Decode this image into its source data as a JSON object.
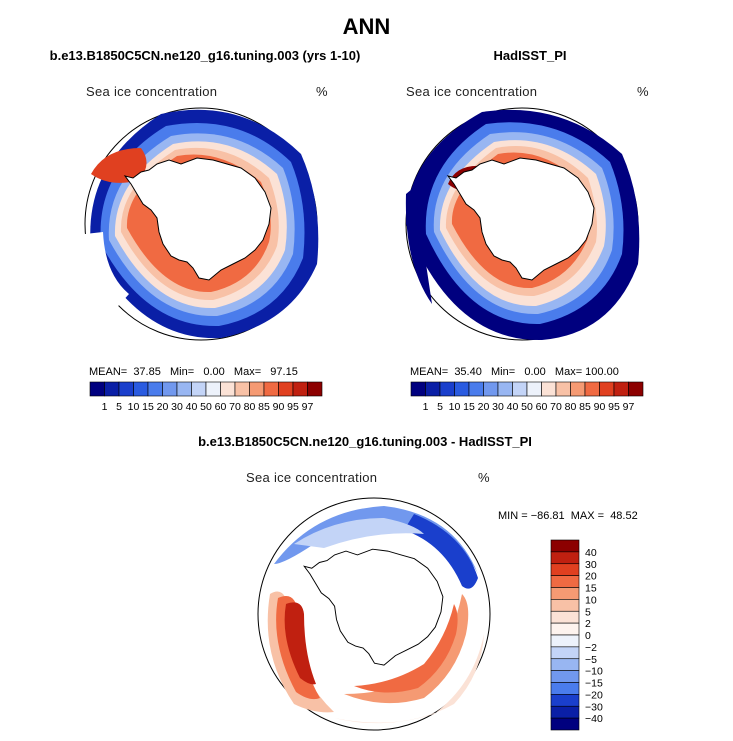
{
  "title": "ANN",
  "panels": [
    {
      "title": "b.e13.B1850C5CN.ne120_g16.tuning.003 (yrs 1-10)",
      "variable": "Sea ice concentration",
      "units": "%",
      "stats_text": "MEAN=  37.85   Min=   0.00   Max=   97.15"
    },
    {
      "title": "HadISST_PI",
      "variable": "Sea ice concentration",
      "units": "%",
      "stats_text": "MEAN=  35.40   Min=   0.00   Max= 100.00"
    },
    {
      "title": "b.e13.B1850C5CN.ne120_g16.tuning.003 - HadISST_PI",
      "variable": "Sea ice concentration",
      "units": "%",
      "stats_text": "MIN = −86.81  MAX =  48.52"
    }
  ],
  "colorbar_abs": {
    "labels": [
      "1",
      "5",
      "10",
      "15",
      "20",
      "30",
      "40",
      "50",
      "60",
      "70",
      "80",
      "85",
      "90",
      "95",
      "97"
    ],
    "colors": [
      "#00007f",
      "#0a1fa6",
      "#1a3fcc",
      "#2a5be0",
      "#4a7cec",
      "#7198ee",
      "#98b6f2",
      "#c3d4f7",
      "#edf2fb",
      "#fbe2d6",
      "#f8c1a6",
      "#f59a73",
      "#f06a42",
      "#e04020",
      "#c02010",
      "#8c0000"
    ]
  },
  "colorbar_diff": {
    "labels": [
      "40",
      "30",
      "20",
      "15",
      "10",
      "5",
      "2",
      "0",
      "−2",
      "−5",
      "−10",
      "−15",
      "−20",
      "−30",
      "−40"
    ],
    "colors": [
      "#8c0000",
      "#c02010",
      "#e04020",
      "#f06a42",
      "#f59a73",
      "#f8c1a6",
      "#fbe2d6",
      "#fdf3ee",
      "#edf2fb",
      "#c3d4f7",
      "#98b6f2",
      "#7198ee",
      "#4a7cec",
      "#1a3fcc",
      "#0a1fa6",
      "#00007f"
    ]
  }
}
